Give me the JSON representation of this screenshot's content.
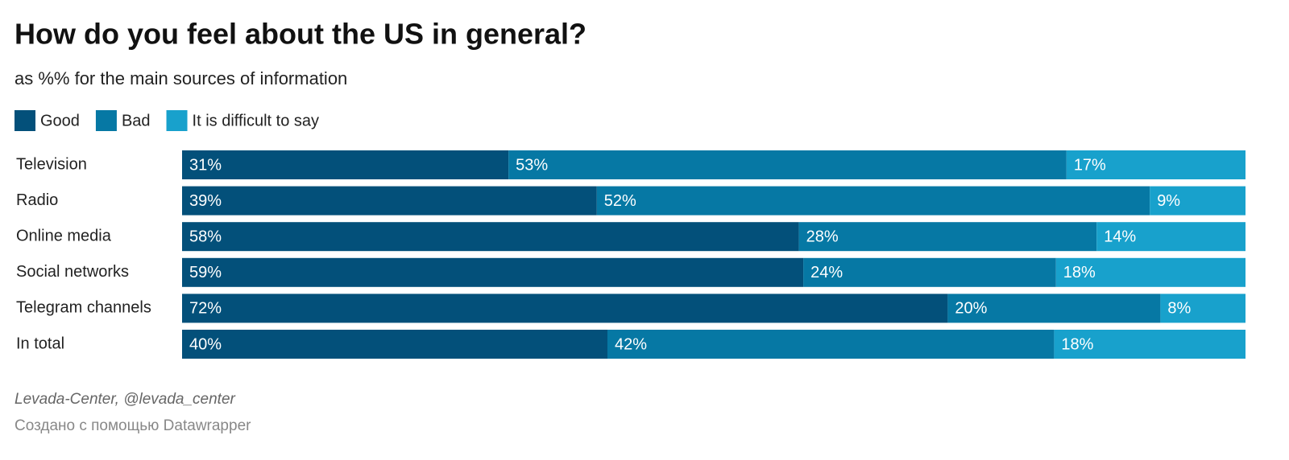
{
  "chart_data": {
    "type": "stacked-bar",
    "title": "How do you feel about the US in general?",
    "subtitle": "as %% for the main sources of information",
    "categories": [
      "Television",
      "Radio",
      "Online media",
      "Social networks",
      "Telegram channels",
      "In total"
    ],
    "series": [
      {
        "name": "Good",
        "color": "#03507a",
        "values": [
          31,
          39,
          58,
          59,
          72,
          40
        ],
        "value_labels": [
          "31%",
          "39%",
          "58%",
          "59%",
          "72%",
          "40%"
        ]
      },
      {
        "name": "Bad",
        "color": "#0678a4",
        "values": [
          53,
          52,
          28,
          24,
          20,
          42
        ],
        "value_labels": [
          "53%",
          "52%",
          "28%",
          "24%",
          "20%",
          "42%"
        ]
      },
      {
        "name": "It is difficult to say",
        "color": "#18a1cc",
        "values": [
          17,
          9,
          14,
          18,
          8,
          18
        ],
        "value_labels": [
          "17%",
          "9%",
          "14%",
          "18%",
          "8%",
          "18%"
        ]
      }
    ],
    "source": "Levada-Center, @levada_center",
    "credit": "Создано с помощью Datawrapper"
  }
}
